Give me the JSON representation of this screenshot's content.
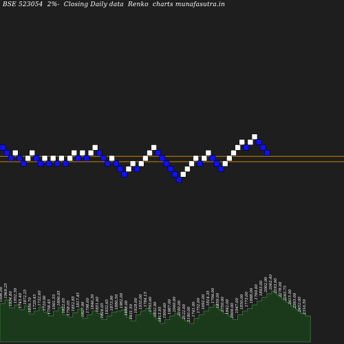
{
  "title": "BSE 523054  2%-  Closing Daily data  Renko  charts munafasutra.in",
  "colors": {
    "background": "#1e1e1e",
    "up_brick": "#ffffff",
    "down_brick": "#1010ff",
    "level_line": "#cc8800",
    "volume_fill": "#1b3a1b",
    "volume_edge": "#3f7a3f",
    "label": "#ffffff"
  },
  "chart_data": {
    "type": "renko",
    "brick_size_pct": 2,
    "bricks": [
      {
        "dir": "down",
        "level": 2
      },
      {
        "dir": "down",
        "level": 1
      },
      {
        "dir": "down",
        "level": 0
      },
      {
        "dir": "up",
        "level": 1
      },
      {
        "dir": "down",
        "level": 0
      },
      {
        "dir": "down",
        "level": -1
      },
      {
        "dir": "up",
        "level": 0
      },
      {
        "dir": "up",
        "level": 1
      },
      {
        "dir": "down",
        "level": 0
      },
      {
        "dir": "down",
        "level": -1
      },
      {
        "dir": "up",
        "level": 0
      },
      {
        "dir": "down",
        "level": -1
      },
      {
        "dir": "up",
        "level": 0
      },
      {
        "dir": "down",
        "level": -1
      },
      {
        "dir": "up",
        "level": 0
      },
      {
        "dir": "down",
        "level": -1
      },
      {
        "dir": "up",
        "level": 0
      },
      {
        "dir": "up",
        "level": 1
      },
      {
        "dir": "down",
        "level": 0
      },
      {
        "dir": "up",
        "level": 1
      },
      {
        "dir": "down",
        "level": 0
      },
      {
        "dir": "up",
        "level": 1
      },
      {
        "dir": "up",
        "level": 2
      },
      {
        "dir": "down",
        "level": 1
      },
      {
        "dir": "down",
        "level": 0
      },
      {
        "dir": "down",
        "level": -1
      },
      {
        "dir": "up",
        "level": 0
      },
      {
        "dir": "down",
        "level": -1
      },
      {
        "dir": "down",
        "level": -2
      },
      {
        "dir": "down",
        "level": -3
      },
      {
        "dir": "up",
        "level": -2
      },
      {
        "dir": "up",
        "level": -1
      },
      {
        "dir": "down",
        "level": -2
      },
      {
        "dir": "up",
        "level": -1
      },
      {
        "dir": "up",
        "level": 0
      },
      {
        "dir": "up",
        "level": 1
      },
      {
        "dir": "up",
        "level": 2
      },
      {
        "dir": "down",
        "level": 1
      },
      {
        "dir": "down",
        "level": 0
      },
      {
        "dir": "down",
        "level": -1
      },
      {
        "dir": "down",
        "level": -2
      },
      {
        "dir": "down",
        "level": -3
      },
      {
        "dir": "down",
        "level": -4
      },
      {
        "dir": "up",
        "level": -3
      },
      {
        "dir": "up",
        "level": -2
      },
      {
        "dir": "up",
        "level": -1
      },
      {
        "dir": "up",
        "level": 0
      },
      {
        "dir": "down",
        "level": -1
      },
      {
        "dir": "up",
        "level": 0
      },
      {
        "dir": "up",
        "level": 1
      },
      {
        "dir": "down",
        "level": 0
      },
      {
        "dir": "down",
        "level": -1
      },
      {
        "dir": "down",
        "level": -2
      },
      {
        "dir": "up",
        "level": -1
      },
      {
        "dir": "up",
        "level": 0
      },
      {
        "dir": "up",
        "level": 1
      },
      {
        "dir": "up",
        "level": 2
      },
      {
        "dir": "up",
        "level": 3
      },
      {
        "dir": "down",
        "level": 2
      },
      {
        "dir": "up",
        "level": 3
      },
      {
        "dir": "up",
        "level": 4
      },
      {
        "dir": "down",
        "level": 3
      },
      {
        "dir": "down",
        "level": 2
      },
      {
        "dir": "down",
        "level": 1
      }
    ],
    "reference_levels": [
      1,
      0
    ],
    "volume": [
      0.62,
      0.68,
      0.55,
      0.6,
      0.52,
      0.58,
      0.45,
      0.5,
      0.56,
      0.48,
      0.42,
      0.5,
      0.56,
      0.44,
      0.4,
      0.47,
      0.53,
      0.38,
      0.44,
      0.5,
      0.46,
      0.36,
      0.42,
      0.48,
      0.5,
      0.52,
      0.4,
      0.34,
      0.44,
      0.5,
      0.54,
      0.46,
      0.38,
      0.3,
      0.36,
      0.42,
      0.46,
      0.4,
      0.34,
      0.3,
      0.38,
      0.44,
      0.5,
      0.56,
      0.6,
      0.52,
      0.46,
      0.42,
      0.36,
      0.44,
      0.5,
      0.54,
      0.6,
      0.66,
      0.72,
      0.78,
      0.82,
      0.76,
      0.7,
      0.64,
      0.58,
      0.52,
      0.46,
      0.42
    ],
    "brick_labels": [
      "1996.00",
      "1969.25",
      "1934.80",
      "1952.30",
      "1745.40",
      "1872.25",
      "1816.70",
      "1729.45",
      "1732.60",
      "1720.00",
      "1758.45",
      "1901.55",
      "1896.05",
      "1822.05",
      "1758.05",
      "1852.85",
      "1817.45",
      "1827.00",
      "1798.00",
      "1846.30",
      "1851.60",
      "1826.05",
      "1932.65",
      "1873.90",
      "1880.50",
      "1982.00",
      "1898.00",
      "1931.50",
      "1928.00",
      "1933.00",
      "1784.15",
      "1793.60",
      "1832.00",
      "1813.95",
      "1900.60",
      "1987.00",
      "2040.00",
      "2100.00",
      "2122.00",
      "2190.00",
      "1741.00",
      "1752.00",
      "1692.00",
      "1814.35",
      "1794.00",
      "1859.00",
      "1750.00",
      "1842.00",
      "1900.00",
      "1947.00",
      "1850.00",
      "1773.00",
      "1888.00",
      "1760.00",
      "1893.00",
      "2002.00",
      "2062.40",
      "2193.00",
      "2278.00",
      "2283.75",
      "2415.00",
      "2383.00",
      "2452.00",
      "2316.50"
    ]
  }
}
